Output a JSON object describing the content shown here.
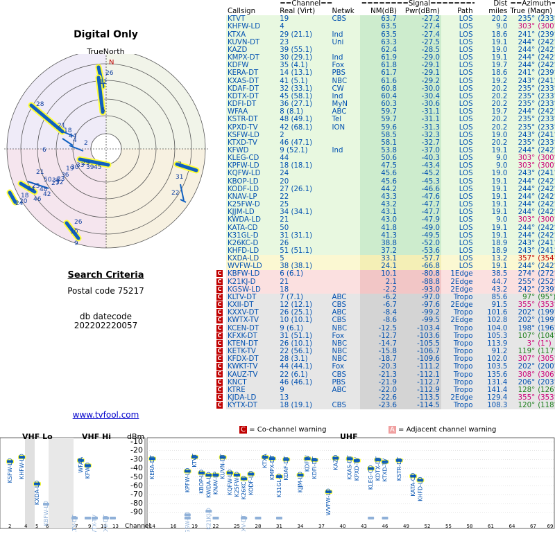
{
  "title": "Digital Only",
  "true_north": "TrueNorth",
  "north_marker": "N",
  "criteria": {
    "heading": "Search Criteria",
    "postal": "Postal code 75217",
    "datecode_label": "db datecode",
    "datecode": "202202220057"
  },
  "link": "www.tvfool.com",
  "table": {
    "group_headers": {
      "channel": "==Channel==",
      "signal": "========Signal========",
      "dist": "Dist",
      "azimuth": "==Azimuth=="
    },
    "columns": [
      "Callsign",
      "Real (Virt)",
      "Netwk",
      "NM(dB)",
      "Pwr(dBm)",
      "Path",
      "miles",
      "True (Magn)"
    ],
    "rows": [
      [
        "KTVT",
        "19",
        "CBS",
        "63.7",
        "-27.2",
        "LOS",
        "20.2",
        "235°",
        "(233°)",
        "g",
        ""
      ],
      [
        "KHFW-LD",
        "4",
        "",
        "63.5",
        "-27.4",
        "LOS",
        "9.0",
        "303°",
        "(300°)",
        "g",
        ""
      ],
      [
        "KTXA",
        "29 (21.1)",
        "Ind",
        "63.5",
        "-27.4",
        "LOS",
        "18.6",
        "241°",
        "(239°)",
        "g",
        ""
      ],
      [
        "KUVN-DT",
        "23",
        "Uni",
        "63.3",
        "-27.5",
        "LOS",
        "19.1",
        "244°",
        "(242°)",
        "g",
        ""
      ],
      [
        "KAZD",
        "39 (55.1)",
        "",
        "62.4",
        "-28.5",
        "LOS",
        "19.0",
        "244°",
        "(242°)",
        "g",
        ""
      ],
      [
        "KMPX-DT",
        "30 (29.1)",
        "Ind",
        "61.9",
        "-29.0",
        "LOS",
        "19.1",
        "244°",
        "(242°)",
        "g",
        ""
      ],
      [
        "KDFW",
        "35 (4.1)",
        "Fox",
        "61.8",
        "-29.1",
        "LOS",
        "19.7",
        "244°",
        "(242°)",
        "g",
        ""
      ],
      [
        "KERA-DT",
        "14 (13.1)",
        "PBS",
        "61.7",
        "-29.1",
        "LOS",
        "18.6",
        "241°",
        "(239°)",
        "g",
        ""
      ],
      [
        "KXAS-DT",
        "41 (5.1)",
        "NBC",
        "61.6",
        "-29.2",
        "LOS",
        "19.2",
        "243°",
        "(241°)",
        "g",
        ""
      ],
      [
        "KDAF-DT",
        "32 (33.1)",
        "CW",
        "60.8",
        "-30.0",
        "LOS",
        "20.2",
        "235°",
        "(233°)",
        "g",
        ""
      ],
      [
        "KDTX-DT",
        "45 (58.1)",
        "Ind",
        "60.4",
        "-30.4",
        "LOS",
        "20.2",
        "235°",
        "(233°)",
        "g",
        ""
      ],
      [
        "KDFI-DT",
        "36 (27.1)",
        "MyN",
        "60.3",
        "-30.6",
        "LOS",
        "20.2",
        "235°",
        "(233°)",
        "g",
        ""
      ],
      [
        "WFAA",
        "8 (8.1)",
        "ABC",
        "59.7",
        "-31.1",
        "LOS",
        "19.7",
        "244°",
        "(242°)",
        "g",
        ""
      ],
      [
        "KSTR-DT",
        "48 (49.1)",
        "Tel",
        "59.7",
        "-31.1",
        "LOS",
        "20.2",
        "235°",
        "(233°)",
        "g",
        ""
      ],
      [
        "KPXD-TV",
        "42 (68.1)",
        "ION",
        "59.6",
        "-31.3",
        "LOS",
        "20.2",
        "235°",
        "(233°)",
        "g",
        ""
      ],
      [
        "KSFW-LD",
        "2",
        "",
        "58.5",
        "-32.3",
        "LOS",
        "19.0",
        "243°",
        "(241°)",
        "g",
        ""
      ],
      [
        "KTXD-TV",
        "46 (47.1)",
        "",
        "58.1",
        "-32.7",
        "LOS",
        "20.2",
        "235°",
        "(233°)",
        "g",
        ""
      ],
      [
        "KFWD",
        "9 (52.1)",
        "Ind",
        "53.8",
        "-37.0",
        "LOS",
        "19.1",
        "244°",
        "(242°)",
        "g",
        ""
      ],
      [
        "KLEG-CD",
        "44",
        "",
        "50.6",
        "-40.3",
        "LOS",
        "9.0",
        "303°",
        "(300°)",
        "g",
        ""
      ],
      [
        "KPFW-LD",
        "18 (18.1)",
        "",
        "47.5",
        "-43.4",
        "LOS",
        "9.0",
        "303°",
        "(300°)",
        "g",
        ""
      ],
      [
        "KQFW-LD",
        "24",
        "",
        "45.6",
        "-45.2",
        "LOS",
        "19.0",
        "243°",
        "(241°)",
        "g",
        ""
      ],
      [
        "KBOP-LD",
        "20",
        "",
        "45.6",
        "-45.3",
        "LOS",
        "19.1",
        "244°",
        "(242°)",
        "g",
        ""
      ],
      [
        "KODF-LD",
        "27 (26.1)",
        "",
        "44.2",
        "-46.6",
        "LOS",
        "19.1",
        "244°",
        "(242°)",
        "g",
        ""
      ],
      [
        "KNAV-LP",
        "22",
        "",
        "43.3",
        "-47.6",
        "LOS",
        "19.1",
        "244°",
        "(242°)",
        "g",
        ""
      ],
      [
        "K25FW-D",
        "25",
        "",
        "43.2",
        "-47.7",
        "LOS",
        "19.1",
        "244°",
        "(242°)",
        "g",
        ""
      ],
      [
        "KJJM-LD",
        "34 (34.1)",
        "",
        "43.1",
        "-47.7",
        "LOS",
        "19.1",
        "244°",
        "(242°)",
        "g",
        ""
      ],
      [
        "KWDA-LD",
        "21",
        "",
        "43.0",
        "-47.9",
        "LOS",
        "9.0",
        "303°",
        "(300°)",
        "g",
        ""
      ],
      [
        "KATA-CD",
        "50",
        "",
        "41.8",
        "-49.0",
        "LOS",
        "19.1",
        "244°",
        "(242°)",
        "g",
        ""
      ],
      [
        "K31GL-D",
        "31 (31.1)",
        "",
        "41.3",
        "-49.5",
        "LOS",
        "19.1",
        "244°",
        "(242°)",
        "g",
        ""
      ],
      [
        "K26KC-D",
        "26",
        "",
        "38.8",
        "-52.0",
        "LOS",
        "18.9",
        "243°",
        "(241°)",
        "g",
        ""
      ],
      [
        "KHFD-LD",
        "51 (51.1)",
        "",
        "37.2",
        "-53.6",
        "LOS",
        "18.9",
        "243°",
        "(241°)",
        "g",
        ""
      ],
      [
        "KXDA-LD",
        "5",
        "",
        "33.1",
        "-57.7",
        "LOS",
        "13.2",
        "357°",
        "(354°)",
        "y",
        ""
      ],
      [
        "WVFW-LD",
        "38 (38.1)",
        "",
        "24.1",
        "-66.8",
        "LOS",
        "19.1",
        "244°",
        "(242°)",
        "y",
        ""
      ],
      [
        "KBFW-LD",
        "6 (6.1)",
        "",
        "10.1",
        "-80.8",
        "1Edge",
        "38.5",
        "274°",
        "(272°)",
        "r",
        "C"
      ],
      [
        "K21KJ-D",
        "21",
        "",
        "2.1",
        "-88.8",
        "2Edge",
        "44.7",
        "255°",
        "(252°)",
        "r",
        "C"
      ],
      [
        "KGSW-LD",
        "18",
        "",
        "-2.2",
        "-93.0",
        "2Edge",
        "43.2",
        "242°",
        "(239°)",
        "r",
        "C"
      ],
      [
        "KLTV-DT",
        "7 (7.1)",
        "ABC",
        "-6.2",
        "-97.0",
        "Tropo",
        "85.6",
        "97°",
        "(95°)",
        "n",
        "C"
      ],
      [
        "KXII-DT",
        "12 (12.1)",
        "CBS",
        "-6.7",
        "-97.6",
        "2Edge",
        "91.5",
        "355°",
        "(353°)",
        "n",
        "C"
      ],
      [
        "KXXV-DT",
        "26 (25.1)",
        "ABC",
        "-8.4",
        "-99.2",
        "Tropo",
        "101.6",
        "202°",
        "(199°)",
        "n",
        "C"
      ],
      [
        "KWTX-TV",
        "10 (10.1)",
        "CBS",
        "-8.6",
        "-99.5",
        "2Edge",
        "102.8",
        "202°",
        "(199°)",
        "n",
        "C"
      ],
      [
        "KCEN-DT",
        "9 (6.1)",
        "NBC",
        "-12.5",
        "-103.4",
        "Tropo",
        "104.0",
        "198°",
        "(196°)",
        "n",
        "C"
      ],
      [
        "KFXK-DT",
        "31 (51.1)",
        "Fox",
        "-12.7",
        "-103.6",
        "Tropo",
        "105.3",
        "107°",
        "(104°)",
        "n",
        "C"
      ],
      [
        "KTEN-DT",
        "26 (10.1)",
        "NBC",
        "-14.7",
        "-105.5",
        "Tropo",
        "113.9",
        "3°",
        "(1°)",
        "n",
        "C"
      ],
      [
        "KETK-TV",
        "22 (56.1)",
        "NBC",
        "-15.8",
        "-106.7",
        "Tropo",
        "91.2",
        "119°",
        "(117°)",
        "n",
        "C"
      ],
      [
        "KFDX-DT",
        "28 (3.1)",
        "NBC",
        "-18.7",
        "-109.6",
        "Tropo",
        "102.0",
        "307°",
        "(305°)",
        "n",
        "C"
      ],
      [
        "KWKT-TV",
        "44 (44.1)",
        "Fox",
        "-20.3",
        "-111.2",
        "Tropo",
        "103.5",
        "202°",
        "(200°)",
        "n",
        "C"
      ],
      [
        "KAUZ-TV",
        "22 (6.1)",
        "CBS",
        "-21.3",
        "-112.1",
        "Tropo",
        "135.6",
        "308°",
        "(306°)",
        "n",
        "C"
      ],
      [
        "KNCT",
        "46 (46.1)",
        "PBS",
        "-21.9",
        "-112.7",
        "Tropo",
        "131.4",
        "206°",
        "(203°)",
        "n",
        "C"
      ],
      [
        "KTRE",
        "9",
        "ABC",
        "-22.0",
        "-112.9",
        "Tropo",
        "141.4",
        "128°",
        "(126°)",
        "n",
        "C"
      ],
      [
        "KJDA-LD",
        "13",
        "",
        "-22.6",
        "-113.5",
        "2Edge",
        "129.4",
        "355°",
        "(353°)",
        "n",
        "C"
      ],
      [
        "KYTX-DT",
        "18 (19.1)",
        "CBS",
        "-23.6",
        "-114.5",
        "Tropo",
        "108.3",
        "120°",
        "(118°)",
        "n",
        "C"
      ]
    ]
  },
  "polar_labels": [
    "26",
    "12",
    "5",
    "28",
    "21",
    "18",
    "44",
    "4",
    "2",
    "6",
    "7",
    "31",
    "22",
    "21",
    "25",
    "34",
    "18",
    "20",
    "24",
    "50",
    "27",
    "46",
    "48",
    "42",
    "32",
    "19",
    "23",
    "36",
    "35",
    "30",
    "33",
    "29",
    "39",
    "45",
    "26",
    "10",
    "9"
  ],
  "bottom": {
    "legend_c": "= Co-channel warning",
    "legend_a": "= Adjacent channel warning",
    "vhf_lo": "VHF Lo",
    "vhf_hi": "VHF Hi",
    "uhf": "UHF",
    "dbm": "dBm",
    "channel": "Channel",
    "y_ticks": [
      "-10",
      "-20",
      "-30",
      "-40",
      "-50",
      "-60",
      "-70",
      "-80",
      "-90"
    ],
    "vhf_lo_ch": [
      "2",
      "4",
      "5",
      "6"
    ],
    "vhf_hi_ch": [
      "7",
      "9",
      "11",
      "13"
    ],
    "uhf_ch": [
      "14",
      "16",
      "19",
      "22",
      "25",
      "28",
      "31",
      "34",
      "37",
      "40",
      "43",
      "46",
      "49",
      "52",
      "55",
      "58",
      "61",
      "64",
      "67",
      "69"
    ]
  },
  "colors": {
    "green": "#e8f8e0",
    "yellow": "#fbf8d2",
    "red": "#fbe0e0",
    "gray": "#e6e6e6",
    "blue": "#0050b0",
    "magenta": "#cc0077",
    "orange": "#cc5500",
    "dkred": "#c00000",
    "marker": "#1060c0",
    "mark_outline": "#ffff33"
  }
}
